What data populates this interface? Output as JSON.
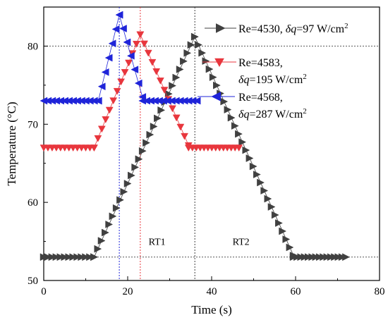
{
  "chart_data": {
    "type": "scatter",
    "xlabel": "Time (s)",
    "ylabel": "Temperature (°C)",
    "xlim": [
      0,
      80
    ],
    "ylim": [
      50,
      85
    ],
    "x_ticks": [
      0,
      20,
      40,
      60,
      80
    ],
    "y_ticks": [
      50,
      60,
      70,
      80
    ],
    "x_tick_labels": [
      "0",
      "20",
      "40",
      "60",
      "80"
    ],
    "y_tick_labels": [
      "50",
      "60",
      "70",
      "80"
    ],
    "grid": false,
    "legend_position": "top-right",
    "series": [
      {
        "name": "Re=4530, δq=97 W/cm²",
        "legend_parts": [
          "Re=4530, ",
          "δq",
          "=97 W/cm",
          "2"
        ],
        "color": "#404040",
        "marker": "triangle-right",
        "segments": [
          {
            "x_start": 0,
            "x_end": 12,
            "y_start": 53,
            "y_end": 53,
            "count": 13
          },
          {
            "x_start": 12,
            "x_end": 36,
            "y_start": 53,
            "y_end": 81.2,
            "count": 28
          },
          {
            "x_start": 36,
            "x_end": 59.5,
            "y_start": 81.2,
            "y_end": 53.2,
            "count": 28
          },
          {
            "x_start": 59.5,
            "x_end": 72,
            "y_start": 53,
            "y_end": 53,
            "count": 15
          }
        ]
      },
      {
        "name": "Re=4583, δq=195 W/cm²",
        "legend_parts": [
          "Re=4583,",
          "δq",
          "=195 W/cm",
          "2"
        ],
        "color": "#e8363d",
        "marker": "triangle-down",
        "segments": [
          {
            "x_start": 0,
            "x_end": 12,
            "y_start": 67,
            "y_end": 67,
            "count": 13
          },
          {
            "x_start": 12,
            "x_end": 23,
            "y_start": 67,
            "y_end": 81.5,
            "count": 13
          },
          {
            "x_start": 23,
            "x_end": 34.5,
            "y_start": 81.5,
            "y_end": 67.3,
            "count": 13
          },
          {
            "x_start": 34.5,
            "x_end": 46.5,
            "y_start": 67,
            "y_end": 67,
            "count": 14
          }
        ]
      },
      {
        "name": "Re=4568, δq=287 W/cm²",
        "legend_parts": [
          "Re=4568,",
          "δq",
          "=287 W/cm",
          "2"
        ],
        "color": "#1f24d9",
        "marker": "triangle-left",
        "segments": [
          {
            "x_start": 0,
            "x_end": 13,
            "y_start": 73,
            "y_end": 73,
            "count": 14
          },
          {
            "x_start": 13,
            "x_end": 18,
            "y_start": 73,
            "y_end": 84,
            "count": 7
          },
          {
            "x_start": 18,
            "x_end": 23.5,
            "y_start": 84,
            "y_end": 73.5,
            "count": 7
          },
          {
            "x_start": 23.5,
            "x_end": 36.5,
            "y_start": 73,
            "y_end": 73,
            "count": 14
          }
        ]
      }
    ],
    "reference_lines": [
      {
        "orientation": "horizontal",
        "value": 80,
        "color": "#555555"
      },
      {
        "orientation": "horizontal",
        "value": 53,
        "color": "#555555"
      },
      {
        "orientation": "vertical",
        "value": 18,
        "color": "#1f24d9"
      },
      {
        "orientation": "vertical",
        "value": 23,
        "color": "#e8363d"
      },
      {
        "orientation": "vertical",
        "value": 36,
        "color": "#404040"
      }
    ],
    "annotations": [
      {
        "text": "RT1",
        "x": 27,
        "y": 55
      },
      {
        "text": "RT2",
        "x": 47,
        "y": 55
      }
    ]
  }
}
